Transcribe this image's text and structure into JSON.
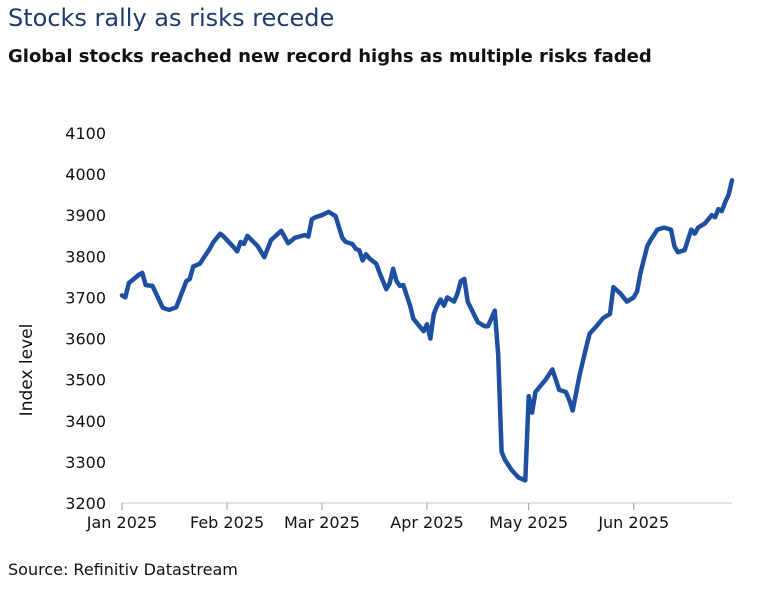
{
  "title": "Stocks rally as risks recede",
  "subtitle": "Global stocks reached new record highs as multiple risks faded",
  "source": "Source: Refinitiv Datastream",
  "chart_data": {
    "type": "line",
    "title": "Stocks rally as risks recede",
    "subtitle": "Global stocks reached new record highs as multiple risks faded",
    "ylabel": "Index level",
    "xlabel": "",
    "ylim": [
      3200,
      4100
    ],
    "yticks": [
      3200,
      3300,
      3400,
      3500,
      3600,
      3700,
      3800,
      3900,
      4000,
      4100
    ],
    "xlim": [
      "2025-01-01",
      "2025-06-30"
    ],
    "xticks": [
      {
        "date": "2025-01-01",
        "label": "Jan 2025"
      },
      {
        "date": "2025-02-01",
        "label": "Feb 2025"
      },
      {
        "date": "2025-03-01",
        "label": "Mar 2025"
      },
      {
        "date": "2025-04-01",
        "label": "Apr 2025"
      },
      {
        "date": "2025-05-01",
        "label": "May 2025"
      },
      {
        "date": "2025-06-01",
        "label": "Jun 2025"
      }
    ],
    "grid": false,
    "line_color": "#1e4fa0",
    "series": [
      {
        "x": [
          "2025-01-01",
          "2025-01-02",
          "2025-01-03",
          "2025-01-06",
          "2025-01-07",
          "2025-01-08",
          "2025-01-10",
          "2025-01-13",
          "2025-01-14",
          "2025-01-15",
          "2025-01-17",
          "2025-01-20",
          "2025-01-21",
          "2025-01-22",
          "2025-01-24",
          "2025-01-27",
          "2025-01-28",
          "2025-01-30",
          "2025-01-31",
          "2025-02-03",
          "2025-02-04",
          "2025-02-05",
          "2025-02-06",
          "2025-02-07",
          "2025-02-10",
          "2025-02-12",
          "2025-02-14",
          "2025-02-17",
          "2025-02-19",
          "2025-02-20",
          "2025-02-21",
          "2025-02-24",
          "2025-02-25",
          "2025-02-26",
          "2025-02-27",
          "2025-03-01",
          "2025-03-03",
          "2025-03-05",
          "2025-03-07",
          "2025-03-08",
          "2025-03-10",
          "2025-03-11",
          "2025-03-12",
          "2025-03-13",
          "2025-03-14",
          "2025-03-15",
          "2025-03-17",
          "2025-03-18",
          "2025-03-20",
          "2025-03-21",
          "2025-03-22",
          "2025-03-23",
          "2025-03-24",
          "2025-03-25",
          "2025-03-27",
          "2025-03-28",
          "2025-03-31",
          "2025-04-01",
          "2025-04-02",
          "2025-04-03",
          "2025-04-04",
          "2025-04-05",
          "2025-04-06",
          "2025-04-07",
          "2025-04-08",
          "2025-04-09",
          "2025-04-10",
          "2025-04-11",
          "2025-04-12",
          "2025-04-13",
          "2025-04-16",
          "2025-04-17",
          "2025-04-18",
          "2025-04-19",
          "2025-04-21",
          "2025-04-22",
          "2025-04-23",
          "2025-04-24",
          "2025-04-26",
          "2025-04-28",
          "2025-04-30",
          "2025-05-01",
          "2025-05-02",
          "2025-05-03",
          "2025-05-05",
          "2025-05-06",
          "2025-05-08",
          "2025-05-10",
          "2025-05-12",
          "2025-05-13",
          "2025-05-14",
          "2025-05-16",
          "2025-05-18",
          "2025-05-19",
          "2025-05-21",
          "2025-05-23",
          "2025-05-25",
          "2025-05-26",
          "2025-05-28",
          "2025-05-30",
          "2025-06-01",
          "2025-06-02",
          "2025-06-03",
          "2025-06-05",
          "2025-06-06",
          "2025-06-08",
          "2025-06-10",
          "2025-06-12",
          "2025-06-13",
          "2025-06-14",
          "2025-06-16",
          "2025-06-18",
          "2025-06-19",
          "2025-06-20",
          "2025-06-22",
          "2025-06-24",
          "2025-06-25",
          "2025-06-26",
          "2025-06-27",
          "2025-06-28",
          "2025-06-29",
          "2025-06-30"
        ],
        "y": [
          3705,
          3700,
          3735,
          3755,
          3760,
          3730,
          3728,
          3675,
          3672,
          3670,
          3676,
          3740,
          3745,
          3775,
          3782,
          3820,
          3835,
          3855,
          3848,
          3822,
          3812,
          3835,
          3830,
          3850,
          3825,
          3798,
          3840,
          3862,
          3832,
          3838,
          3845,
          3852,
          3848,
          3890,
          3895,
          3900,
          3908,
          3898,
          3845,
          3835,
          3830,
          3818,
          3815,
          3790,
          3805,
          3795,
          3782,
          3760,
          3720,
          3735,
          3770,
          3740,
          3728,
          3730,
          3680,
          3648,
          3618,
          3635,
          3600,
          3660,
          3680,
          3695,
          3680,
          3700,
          3695,
          3690,
          3710,
          3740,
          3745,
          3690,
          3640,
          3635,
          3630,
          3630,
          3668,
          3560,
          3325,
          3305,
          3280,
          3262,
          3255,
          3460,
          3420,
          3470,
          3490,
          3500,
          3525,
          3475,
          3470,
          3450,
          3425,
          3510,
          3580,
          3612,
          3630,
          3650,
          3660,
          3725,
          3710,
          3690,
          3700,
          3715,
          3760,
          3825,
          3840,
          3865,
          3870,
          3865,
          3825,
          3810,
          3815,
          3865,
          3855,
          3870,
          3880,
          3900,
          3895,
          3915,
          3910,
          3932,
          3950,
          3985
        ]
      }
    ]
  }
}
